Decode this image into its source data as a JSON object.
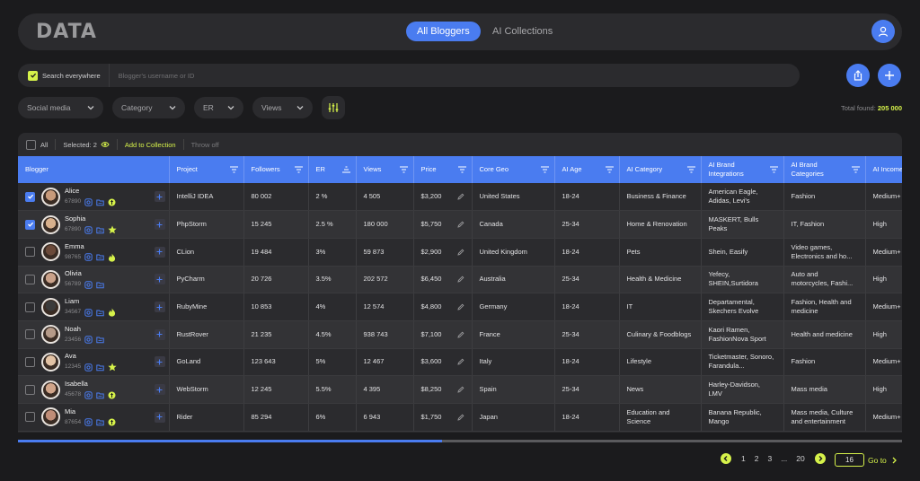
{
  "app": {
    "logo": "DATA"
  },
  "tabs": [
    {
      "label": "All Bloggers",
      "active": true
    },
    {
      "label": "AI Collections",
      "active": false
    }
  ],
  "search": {
    "scope_label": "Search everywhere",
    "placeholder": "Blogger's username or ID"
  },
  "filters": [
    "Social media",
    "Category",
    "ER",
    "Views"
  ],
  "total": {
    "label": "Total found:",
    "value": "205 000"
  },
  "toolbar": {
    "all_label": "All",
    "selected_label": "Selected: 2",
    "add_label": "Add to Collection",
    "throw_label": "Throw off"
  },
  "columns": [
    "Blogger",
    "Project",
    "Followers",
    "ER",
    "Views",
    "Price",
    "Core Geo",
    "AI Age",
    "AI Category",
    "AI Brand Integrations",
    "AI Brand Categories",
    "AI Income"
  ],
  "rows": [
    {
      "name": "Alice",
      "id": "67890",
      "checked": true,
      "badge": "coin",
      "project": "IntelliJ IDEA",
      "followers": "80 002",
      "er": "2 %",
      "views": "4 505",
      "price": "$3,200",
      "geo": "United States",
      "age": "18-24",
      "category": "Business & Finance",
      "brands": "American Eagle, Adidas, Levi's",
      "brand_cats": "Fashion",
      "income": "Medium+"
    },
    {
      "name": "Sophia",
      "id": "67890",
      "checked": true,
      "badge": "star",
      "project": "PhpStorm",
      "followers": "15 245",
      "er": "2.5 %",
      "views": "180 000",
      "price": "$5,750",
      "geo": "Canada",
      "age": "25-34",
      "category": "Home & Renovation",
      "brands": "MASKERT, Bulls Peaks",
      "brand_cats": "IT, Fashion",
      "income": "High"
    },
    {
      "name": "Emma",
      "id": "98765",
      "checked": false,
      "badge": "fire",
      "project": "CLion",
      "followers": "19 484",
      "er": "3%",
      "views": "59 873",
      "price": "$2,900",
      "geo": "United Kingdom",
      "age": "18-24",
      "category": "Pets",
      "brands": "Shein, Easify",
      "brand_cats": "Video games, Electronics and ho...",
      "income": "Medium+"
    },
    {
      "name": "Olivia",
      "id": "56789",
      "checked": false,
      "badge": "",
      "project": "PyCharm",
      "followers": "20 726",
      "er": "3.5%",
      "views": "202 572",
      "price": "$6,450",
      "geo": "Australia",
      "age": "25-34",
      "category": "Health & Medicine",
      "brands": "Yefecy, SHEIN,Surtidora",
      "brand_cats": "Auto and motorcycles, Fashi...",
      "income": "High"
    },
    {
      "name": "Liam",
      "id": "34567",
      "checked": false,
      "badge": "fire",
      "project": "RubyMine",
      "followers": "10 853",
      "er": "4%",
      "views": "12 574",
      "price": "$4,800",
      "geo": "Germany",
      "age": "18-24",
      "category": "IT",
      "brands": "Departamental, Skechers Evolve",
      "brand_cats": "Fashion, Health and medicine",
      "income": "Medium+"
    },
    {
      "name": "Noah",
      "id": "23456",
      "checked": false,
      "badge": "",
      "project": "RustRover",
      "followers": "21 235",
      "er": "4.5%",
      "views": "938 743",
      "price": "$7,100",
      "geo": "France",
      "age": "25-34",
      "category": "Culinary & Foodblogs",
      "brands": "Kaori Ramen, FashionNova Sport",
      "brand_cats": "Health and medicine",
      "income": "High"
    },
    {
      "name": "Ava",
      "id": "12345",
      "checked": false,
      "badge": "star",
      "project": "GoLand",
      "followers": "123 643",
      "er": "5%",
      "views": "12 467",
      "price": "$3,600",
      "geo": "Italy",
      "age": "18-24",
      "category": "Lifestyle",
      "brands": "Ticketmaster, Sonoro, Farandula...",
      "brand_cats": "Fashion",
      "income": "Medium+"
    },
    {
      "name": "Isabella",
      "id": "45678",
      "checked": false,
      "badge": "coin",
      "project": "WebStorm",
      "followers": "12 245",
      "er": "5.5%",
      "views": "4 395",
      "price": "$8,250",
      "geo": "Spain",
      "age": "25-34",
      "category": "News",
      "brands": "Harley-Davidson, LMV",
      "brand_cats": "Mass media",
      "income": "High"
    },
    {
      "name": "Mia",
      "id": "87654",
      "checked": false,
      "badge": "coin",
      "project": "Rider",
      "followers": "85 294",
      "er": "6%",
      "views": "6 943",
      "price": "$1,750",
      "geo": "Japan",
      "age": "18-24",
      "category": "Education and Science",
      "brands": "Banana Republic, Mango",
      "brand_cats": "Mass media, Culture and entertainment",
      "income": "Medium+"
    }
  ],
  "pagination": {
    "pages": [
      "1",
      "2",
      "3",
      "...",
      "20"
    ],
    "goto_value": "16",
    "goto_label": "Go to"
  },
  "progress": {
    "fraction": 0.48
  },
  "colors": {
    "accent": "#4a7cf0",
    "lime": "#d6f24a",
    "bg": "#1b1b1d",
    "panel": "#2b2b2e"
  }
}
